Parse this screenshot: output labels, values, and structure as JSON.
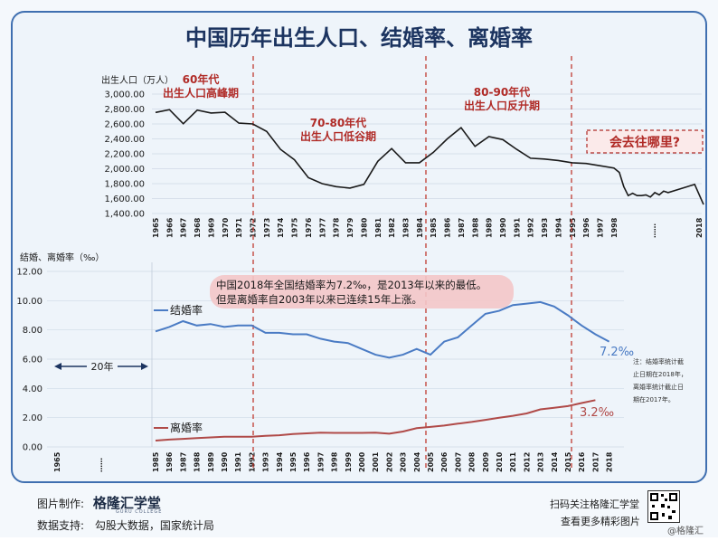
{
  "title": "中国历年出生人口、结婚率、离婚率",
  "colors": {
    "border": "#3f6fb0",
    "title": "#1c3460",
    "births_line": "#1a1a1a",
    "marriage_line": "#4a7bc4",
    "divorce_line": "#b04a48",
    "period_label": "#b02a26",
    "divider": "#c03a30",
    "bg_blue": "#dfe9f5"
  },
  "chart_data": [
    {
      "type": "line",
      "ylabel": "出生人口（万人）",
      "ylim": [
        1400,
        3000
      ],
      "yticks": [
        "3,000.00",
        "2,800.00",
        "2,600.00",
        "2,400.00",
        "2,200.00",
        "2,000.00",
        "1,800.00",
        "1,600.00",
        "1,400.00"
      ],
      "ytick_values": [
        3000,
        2800,
        2600,
        2400,
        2200,
        2000,
        1800,
        1600,
        1400
      ],
      "x_labels": [
        "1965",
        "1966",
        "1967",
        "1968",
        "1969",
        "1970",
        "1971",
        "1972",
        "1973",
        "1974",
        "1975",
        "1976",
        "1977",
        "1978",
        "1979",
        "1980",
        "1981",
        "1982",
        "1983",
        "1984",
        "1985",
        "1986",
        "1987",
        "1988",
        "1989",
        "1990",
        "1991",
        "1992",
        "1993",
        "1994",
        "1995",
        "1996",
        "1997",
        "1998",
        "……",
        "2018"
      ],
      "series": [
        {
          "values": [
            2754,
            2792,
            2602,
            2785,
            2747,
            2756,
            2611,
            2600,
            2500,
            2260,
            2120,
            1880,
            1800,
            1760,
            1740,
            1790,
            2100,
            2270,
            2080,
            2080,
            2220,
            2400,
            2550,
            2300,
            2430,
            2390,
            2260,
            2140,
            2130,
            2110,
            2080,
            2070,
            2040,
            2010,
            1950,
            1760,
            1640,
            1670,
            1640,
            1640,
            1650,
            1620,
            1680,
            1650,
            1700,
            1680,
            1790,
            1520
          ],
          "years": [
            1965,
            1966,
            1967,
            1968,
            1969,
            1970,
            1971,
            1972,
            1973,
            1974,
            1975,
            1976,
            1977,
            1978,
            1979,
            1980,
            1981,
            1982,
            1983,
            1984,
            1985,
            1986,
            1987,
            1988,
            1989,
            1990,
            1991,
            1992,
            1993,
            1994,
            1995,
            1996,
            1997,
            1998,
            1999,
            2000,
            2001,
            2002,
            2003,
            2004,
            2005,
            2006,
            2007,
            2008,
            2009,
            2010,
            2016,
            2018
          ]
        }
      ],
      "annotations": [
        {
          "text": "60年代",
          "sub": "出生人口高峰期"
        },
        {
          "text": "70-80年代",
          "sub": "出生人口低谷期"
        },
        {
          "text": "80-90年代",
          "sub": "出生人口反升期"
        },
        {
          "text": "会去往哪里?"
        }
      ]
    },
    {
      "type": "line",
      "ylabel": "结婚、离婚率（‰）",
      "ylim": [
        0,
        12
      ],
      "yticks": [
        "12.00",
        "10.00",
        "8.00",
        "6.00",
        "4.00",
        "2.00",
        "0.00"
      ],
      "ytick_values": [
        12,
        10,
        8,
        6,
        4,
        2,
        0
      ],
      "x_labels": [
        "1965",
        "……",
        "1985",
        "1986",
        "1987",
        "1988",
        "1989",
        "1990",
        "1991",
        "1992",
        "1993",
        "1994",
        "1995",
        "1996",
        "1997",
        "1998",
        "1999",
        "2000",
        "2001",
        "2002",
        "2003",
        "2004",
        "2005",
        "2006",
        "2007",
        "2008",
        "2009",
        "2010",
        "2011",
        "2012",
        "2013",
        "2014",
        "2015",
        "2016",
        "2017",
        "2018"
      ],
      "x_years": [
        1985,
        1986,
        1987,
        1988,
        1989,
        1990,
        1991,
        1992,
        1993,
        1994,
        1995,
        1996,
        1997,
        1998,
        1999,
        2000,
        2001,
        2002,
        2003,
        2004,
        2005,
        2006,
        2007,
        2008,
        2009,
        2010,
        2011,
        2012,
        2013,
        2014,
        2015,
        2016,
        2017,
        2018
      ],
      "series": [
        {
          "name": "结婚率",
          "values": [
            7.9,
            8.2,
            8.6,
            8.3,
            8.4,
            8.2,
            8.3,
            8.3,
            7.8,
            7.8,
            7.7,
            7.7,
            7.4,
            7.2,
            7.1,
            6.7,
            6.3,
            6.1,
            6.3,
            6.7,
            6.3,
            7.2,
            7.5,
            8.3,
            9.1,
            9.3,
            9.7,
            9.8,
            9.9,
            9.6,
            9.0,
            8.3,
            7.7,
            7.2
          ]
        },
        {
          "name": "离婚率",
          "values": [
            0.43,
            0.5,
            0.55,
            0.6,
            0.65,
            0.69,
            0.7,
            0.7,
            0.76,
            0.8,
            0.88,
            0.93,
            0.97,
            0.96,
            0.96,
            0.96,
            0.98,
            0.9,
            1.05,
            1.28,
            1.37,
            1.46,
            1.59,
            1.71,
            1.85,
            2.0,
            2.13,
            2.29,
            2.57,
            2.67,
            2.79,
            3.0,
            3.2
          ]
        }
      ],
      "end_labels": {
        "marriage": "7.2‰",
        "divorce": "3.2‰"
      },
      "gap_label": "20年",
      "callout": [
        "中国2018年全国结婚率为7.2‰，是2013年以来的最低。",
        "但是离婚率自2003年以来已连续15年上涨。"
      ],
      "note": [
        "注：结婚率统计截",
        "止日期在2018年，",
        "离婚率统计截止日",
        "期在2017年。"
      ]
    }
  ],
  "footer": {
    "made_by_label": "图片制作:",
    "brand": "格隆汇学堂",
    "brand_sub": "GURU COLLEGE",
    "data_label": "数据支持:",
    "data_sources": "勾股大数据，国家统计局",
    "qr_line1": "扫码关注格隆汇学堂",
    "qr_line2": "查看更多精彩图片",
    "watermark": "@格隆汇"
  }
}
